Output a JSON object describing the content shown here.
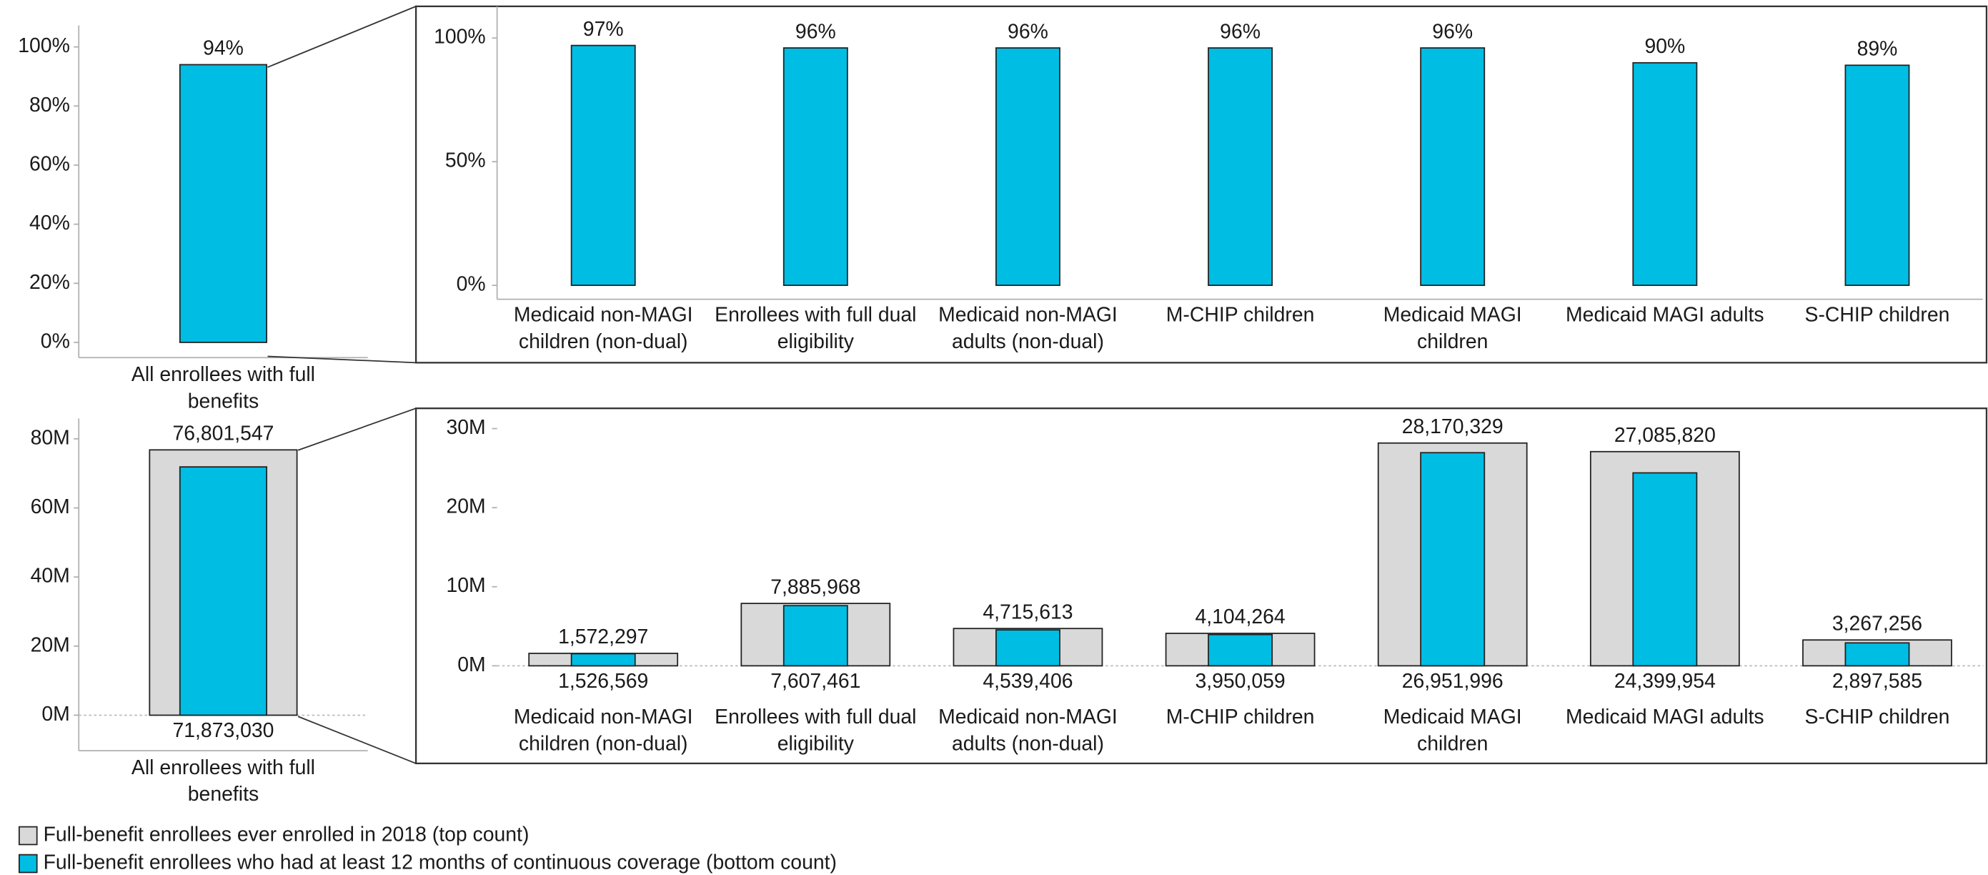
{
  "chart_data": [
    {
      "type": "bar",
      "categories": [
        "All enrollees with full benefits"
      ],
      "values": [
        94
      ],
      "value_labels": [
        "94%"
      ],
      "color": "#00bde4",
      "ylim": [
        -5,
        107
      ],
      "yticks": [
        {
          "value": 0,
          "label": "0%"
        },
        {
          "value": 20,
          "label": "20%"
        },
        {
          "value": 40,
          "label": "40%"
        },
        {
          "value": 60,
          "label": "60%"
        },
        {
          "value": 80,
          "label": "80%"
        },
        {
          "value": 100,
          "label": "100%"
        }
      ]
    },
    {
      "type": "bar",
      "categories": [
        "Medicaid non-MAGI children (non-dual)",
        "Enrollees with full dual eligibility",
        "Medicaid non-MAGI adults (non-dual)",
        "M-CHIP children",
        "Medicaid MAGI children",
        "Medicaid MAGI adults",
        "S-CHIP children"
      ],
      "values": [
        97,
        96,
        96,
        96,
        96,
        90,
        89
      ],
      "value_labels": [
        "97%",
        "96%",
        "96%",
        "96%",
        "96%",
        "90%",
        "89%"
      ],
      "color": "#00bde4",
      "ylim": [
        -5,
        112
      ],
      "yticks": [
        {
          "value": 0,
          "label": "0%"
        },
        {
          "value": 50,
          "label": "50%"
        },
        {
          "value": 100,
          "label": "100%"
        }
      ]
    },
    {
      "type": "bar",
      "categories": [
        "All enrollees with full benefits"
      ],
      "series": [
        {
          "name": "Full-benefit enrollees ever enrolled in 2018 (top count)",
          "color": "#d9d9d9",
          "values": [
            76801547
          ],
          "value_labels": [
            "76,801,547"
          ]
        },
        {
          "name": "Full-benefit enrollees who had at least 12 months of continuous coverage (bottom count)",
          "color": "#00bde4",
          "values": [
            71873030
          ],
          "value_labels": [
            "71,873,030"
          ]
        }
      ],
      "ylim": [
        -9000000,
        86000000
      ],
      "yticks": [
        {
          "value": 0,
          "label": "0M"
        },
        {
          "value": 20000000,
          "label": "20M"
        },
        {
          "value": 40000000,
          "label": "40M"
        },
        {
          "value": 60000000,
          "label": "60M"
        },
        {
          "value": 80000000,
          "label": "80M"
        }
      ]
    },
    {
      "type": "bar",
      "categories": [
        "Medicaid non-MAGI children (non-dual)",
        "Enrollees with full dual eligibility",
        "Medicaid non-MAGI adults (non-dual)",
        "M-CHIP children",
        "Medicaid MAGI children",
        "Medicaid MAGI adults",
        "S-CHIP children"
      ],
      "series": [
        {
          "color": "#d9d9d9",
          "values": [
            1572297,
            7885968,
            4715613,
            4104264,
            28170329,
            27085820,
            3267256
          ],
          "value_labels": [
            "1,572,297",
            "7,885,968",
            "4,715,613",
            "4,104,264",
            "28,170,329",
            "27,085,820",
            "3,267,256"
          ]
        },
        {
          "color": "#00bde4",
          "values": [
            1526569,
            7607461,
            4539406,
            3950059,
            26951996,
            24399954,
            2897585
          ],
          "value_labels": [
            "1,526,569",
            "7,607,461",
            "4,539,406",
            "3,950,059",
            "26,951,996",
            "24,399,954",
            "2,897,585"
          ]
        }
      ],
      "ylim": [
        -2000000,
        32000000
      ],
      "yticks": [
        {
          "value": 0,
          "label": "0M"
        },
        {
          "value": 10000000,
          "label": "10M"
        },
        {
          "value": 20000000,
          "label": "20M"
        },
        {
          "value": 30000000,
          "label": "30M"
        }
      ]
    }
  ]
}
